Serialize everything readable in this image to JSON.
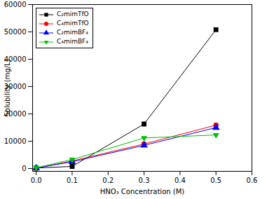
{
  "chart_data": {
    "type": "line",
    "x_label": "HNO₃ Concentration (M)",
    "y_label": "Solubility (mg/L)",
    "x": [
      0,
      0.1,
      0.3,
      0.5
    ],
    "series": [
      {
        "name": "C₂mimTfO",
        "color": "#000000",
        "marker": "square",
        "values": [
          200,
          800,
          16300,
          50800
        ]
      },
      {
        "name": "C₄mimTfO",
        "color": "#ff0000",
        "marker": "circle",
        "values": [
          100,
          2800,
          9000,
          15900
        ]
      },
      {
        "name": "C₂mimBF₄",
        "color": "#0000ff",
        "marker": "triangle",
        "values": [
          200,
          2500,
          8500,
          15000
        ]
      },
      {
        "name": "C₄mimBF₄",
        "color": "#00c000",
        "marker": "triangle-down",
        "values": [
          300,
          3300,
          11200,
          12300
        ]
      }
    ],
    "xlim": [
      -0.01,
      0.6
    ],
    "xticks": [
      {
        "value": 0,
        "label": "0.0"
      },
      0.1,
      0.2,
      0.3,
      0.4,
      0.5,
      0.6
    ],
    "ylim": [
      -1000,
      60000
    ],
    "yticks": [
      0,
      10000,
      20000,
      30000,
      40000,
      50000,
      60000
    ],
    "grid": false,
    "legend": "upper left"
  }
}
